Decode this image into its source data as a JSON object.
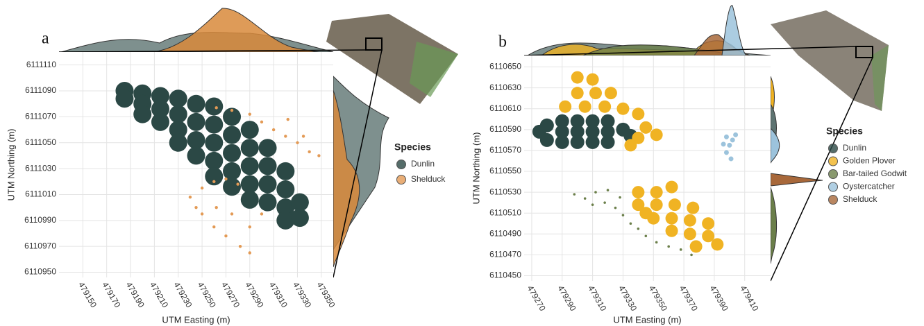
{
  "chart_data": [
    {
      "type": "scatter",
      "panel_label": "a",
      "x_label": "UTM Easting (m)",
      "y_label": "UTM Northing (m)",
      "legend_title": "Species",
      "grid": true,
      "xlim": [
        479130,
        479360
      ],
      "ylim": [
        6110946,
        6111120
      ],
      "xticks": [
        479150,
        479170,
        479190,
        479210,
        479230,
        479250,
        479270,
        479290,
        479310,
        479330,
        479350
      ],
      "yticks": [
        6110950,
        6110970,
        6110990,
        6111010,
        6111030,
        6111050,
        6111070,
        6111090,
        6111110
      ],
      "series": [
        {
          "name": "Dunlin",
          "color": "#2b4845",
          "x": [
            479185,
            479185,
            479200,
            479200,
            479200,
            479215,
            479215,
            479215,
            479230,
            479230,
            479230,
            479230,
            479245,
            479245,
            479245,
            479245,
            479260,
            479260,
            479260,
            479260,
            479260,
            479275,
            479275,
            479275,
            479275,
            479275,
            479290,
            479290,
            479290,
            479290,
            479290,
            479305,
            479305,
            479305,
            479305,
            479320,
            479320,
            479320,
            479320,
            479332,
            479332
          ],
          "values": [
            6111090,
            6111084,
            6111088,
            6111080,
            6111072,
            6111086,
            6111076,
            6111066,
            6111084,
            6111072,
            6111060,
            6111050,
            6111080,
            6111066,
            6111052,
            6111040,
            6111078,
            6111064,
            6111050,
            6111036,
            6111024,
            6111070,
            6111056,
            6111042,
            6111028,
            6111016,
            6111060,
            6111046,
            6111032,
            6111018,
            6111006,
            6111046,
            6111032,
            6111018,
            6111004,
            6111028,
            6111014,
            6111000,
            6110990,
            6111004,
            6110992
          ]
        },
        {
          "name": "Shelduck",
          "color": "#e39a55",
          "x": [
            479262,
            479275,
            479290,
            479300,
            479310,
            479320,
            479330,
            479340,
            479335,
            479322,
            479348,
            479240,
            479250,
            479260,
            479270,
            479280,
            479250,
            479262,
            479275,
            479290,
            479270,
            479282,
            479290,
            479260,
            479300,
            479245
          ],
          "values": [
            6111077,
            6111075,
            6111072,
            6111066,
            6111060,
            6111055,
            6111050,
            6111043,
            6111055,
            6111068,
            6111040,
            6111008,
            6111015,
            6111020,
            6111022,
            6111018,
            6110995,
            6111000,
            6110995,
            6110985,
            6110978,
            6110970,
            6110965,
            6110985,
            6110995,
            6111000
          ]
        }
      ]
    },
    {
      "type": "scatter",
      "panel_label": "b",
      "x_label": "UTM Easting (m)",
      "y_label": "UTM Northing (m)",
      "legend_title": "Species",
      "grid": true,
      "xlim": [
        479265,
        479427
      ],
      "ylim": [
        6110445,
        6110661
      ],
      "xticks": [
        479270,
        479290,
        479310,
        479330,
        479350,
        479370,
        479390,
        479410
      ],
      "yticks": [
        6110450,
        6110470,
        6110490,
        6110510,
        6110530,
        6110550,
        6110570,
        6110590,
        6110610,
        6110630,
        6110650
      ],
      "series": [
        {
          "name": "Dunlin",
          "color": "#2b4845",
          "x": [
            479275,
            479280,
            479280,
            479290,
            479290,
            479290,
            479300,
            479300,
            479300,
            479310,
            479310,
            479310,
            479320,
            479320,
            479320,
            479330,
            479335
          ],
          "values": [
            6110588,
            6110594,
            6110580,
            6110598,
            6110588,
            6110578,
            6110598,
            6110588,
            6110578,
            6110598,
            6110588,
            6110578,
            6110598,
            6110588,
            6110578,
            6110590,
            6110584
          ]
        },
        {
          "name": "Golden Plover",
          "color": "#f0b323",
          "x": [
            479300,
            479310,
            479300,
            479312,
            479322,
            479292,
            479305,
            479318,
            479330,
            479340,
            479345,
            479352,
            479340,
            479335,
            479340,
            479352,
            479362,
            479340,
            479352,
            479364,
            479376,
            479350,
            479362,
            479374,
            479386,
            479362,
            479374,
            479386,
            479392,
            479378,
            479345
          ],
          "values": [
            6110640,
            6110638,
            6110625,
            6110625,
            6110625,
            6110612,
            6110612,
            6110612,
            6110610,
            6110605,
            6110592,
            6110585,
            6110582,
            6110575,
            6110530,
            6110530,
            6110535,
            6110518,
            6110518,
            6110518,
            6110515,
            6110505,
            6110505,
            6110503,
            6110500,
            6110493,
            6110490,
            6110488,
            6110480,
            6110478,
            6110510
          ]
        },
        {
          "name": "Bar-tailed Godwit",
          "color": "#6b7f4a",
          "x": [
            479298,
            479305,
            479312,
            479318,
            479325,
            479330,
            479335,
            479340,
            479345,
            479352,
            479360,
            479368,
            479375,
            479328,
            479320,
            479310
          ],
          "values": [
            6110528,
            6110524,
            6110530,
            6110520,
            6110515,
            6110508,
            6110500,
            6110495,
            6110488,
            6110482,
            6110478,
            6110475,
            6110470,
            6110525,
            6110532,
            6110518
          ]
        },
        {
          "name": "Oystercatcher",
          "color": "#9cc3dc",
          "x": [
            479398,
            479402,
            479400,
            479398,
            479401,
            479404,
            479396
          ],
          "values": [
            6110583,
            6110580,
            6110575,
            6110568,
            6110562,
            6110585,
            6110576
          ]
        },
        {
          "name": "Shelduck",
          "color": "#a8683a",
          "x": [],
          "values": []
        }
      ]
    }
  ]
}
